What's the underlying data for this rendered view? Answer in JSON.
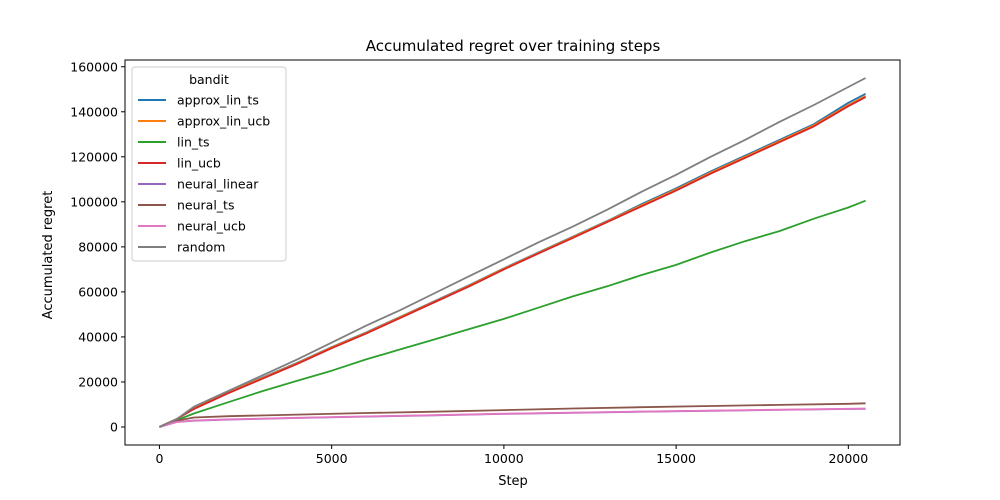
{
  "chart_data": {
    "type": "line",
    "title": "Accumulated regret over training steps",
    "xlabel": "Step",
    "ylabel": "Accumulated regret",
    "xlim": [
      -1000,
      21500
    ],
    "ylim": [
      -8000,
      163000
    ],
    "xticks": [
      0,
      5000,
      10000,
      15000,
      20000
    ],
    "yticks": [
      0,
      20000,
      40000,
      60000,
      80000,
      100000,
      120000,
      140000,
      160000
    ],
    "grid": false,
    "legend": {
      "title": "bandit",
      "placement": "top-left"
    },
    "series": [
      {
        "name": "approx_lin_ts",
        "color": "#1f77b4",
        "x": [
          0,
          500,
          1000,
          2000,
          3000,
          4000,
          5000,
          6000,
          7000,
          8000,
          9000,
          10000,
          11000,
          12000,
          13000,
          14000,
          15000,
          16000,
          17000,
          18000,
          19000,
          20000,
          20500
        ],
        "y": [
          0,
          3500,
          8500,
          15500,
          22000,
          28500,
          35500,
          42000,
          49000,
          56000,
          63000,
          70500,
          77500,
          84500,
          91500,
          99000,
          106000,
          113500,
          120500,
          127500,
          134500,
          144000,
          148000
        ]
      },
      {
        "name": "approx_lin_ucb",
        "color": "#ff7f0e",
        "x": [
          0,
          500,
          1000,
          2000,
          3000,
          4000,
          5000,
          6000,
          7000,
          8000,
          9000,
          10000,
          11000,
          12000,
          13000,
          14000,
          15000,
          16000,
          17000,
          18000,
          19000,
          20000,
          20500
        ],
        "y": [
          0,
          3500,
          8300,
          15300,
          21800,
          28300,
          35300,
          41800,
          48800,
          55800,
          62800,
          70300,
          77300,
          84300,
          91300,
          98500,
          105500,
          113000,
          120000,
          127000,
          134000,
          143000,
          147000
        ]
      },
      {
        "name": "lin_ts",
        "color": "#2ca02c",
        "x": [
          0,
          500,
          1000,
          2000,
          3000,
          4000,
          5000,
          6000,
          7000,
          8000,
          9000,
          10000,
          11000,
          12000,
          13000,
          14000,
          15000,
          16000,
          17000,
          18000,
          19000,
          20000,
          20500
        ],
        "y": [
          0,
          3000,
          6000,
          11000,
          16000,
          20500,
          25000,
          30000,
          34500,
          39000,
          43500,
          48000,
          53000,
          58000,
          62500,
          67500,
          72000,
          77500,
          82500,
          87000,
          92500,
          97500,
          100500
        ]
      },
      {
        "name": "lin_ucb",
        "color": "#d62728",
        "x": [
          0,
          500,
          1000,
          2000,
          3000,
          4000,
          5000,
          6000,
          7000,
          8000,
          9000,
          10000,
          11000,
          12000,
          13000,
          14000,
          15000,
          16000,
          17000,
          18000,
          19000,
          20000,
          20500
        ],
        "y": [
          0,
          3500,
          8000,
          15000,
          21500,
          28000,
          35000,
          41500,
          48500,
          55500,
          62500,
          70000,
          77000,
          84000,
          91000,
          98000,
          105000,
          112500,
          119500,
          126500,
          133500,
          142500,
          146500
        ]
      },
      {
        "name": "neural_linear",
        "color": "#9467bd",
        "x": [
          0,
          500,
          1000,
          2000,
          4000,
          6000,
          8000,
          10000,
          12000,
          14000,
          16000,
          18000,
          20000,
          20500
        ],
        "y": [
          0,
          2200,
          2800,
          3300,
          4000,
          4600,
          5200,
          5800,
          6300,
          6800,
          7200,
          7600,
          8000,
          8100
        ]
      },
      {
        "name": "neural_ts",
        "color": "#8c564b",
        "x": [
          0,
          500,
          1000,
          2000,
          4000,
          6000,
          8000,
          10000,
          12000,
          14000,
          16000,
          18000,
          20000,
          20500
        ],
        "y": [
          0,
          2800,
          4200,
          4800,
          5500,
          6200,
          6800,
          7500,
          8200,
          8800,
          9300,
          9800,
          10300,
          10500
        ]
      },
      {
        "name": "neural_ucb",
        "color": "#e377c2",
        "x": [
          0,
          500,
          1000,
          2000,
          4000,
          6000,
          8000,
          10000,
          12000,
          14000,
          16000,
          18000,
          20000,
          20500
        ],
        "y": [
          0,
          2200,
          2900,
          3400,
          4100,
          4700,
          5300,
          5900,
          6400,
          6900,
          7300,
          7700,
          8100,
          8200
        ]
      },
      {
        "name": "random",
        "color": "#7f7f7f",
        "x": [
          0,
          500,
          1000,
          2000,
          3000,
          4000,
          5000,
          6000,
          7000,
          8000,
          9000,
          10000,
          11000,
          12000,
          13000,
          14000,
          15000,
          16000,
          17000,
          18000,
          19000,
          20000,
          20500
        ],
        "y": [
          0,
          3500,
          9000,
          16000,
          23000,
          30000,
          37500,
          45000,
          52000,
          59500,
          67000,
          74500,
          82000,
          89000,
          96500,
          104500,
          112000,
          120000,
          127500,
          135500,
          143000,
          151000,
          155000
        ]
      }
    ]
  }
}
